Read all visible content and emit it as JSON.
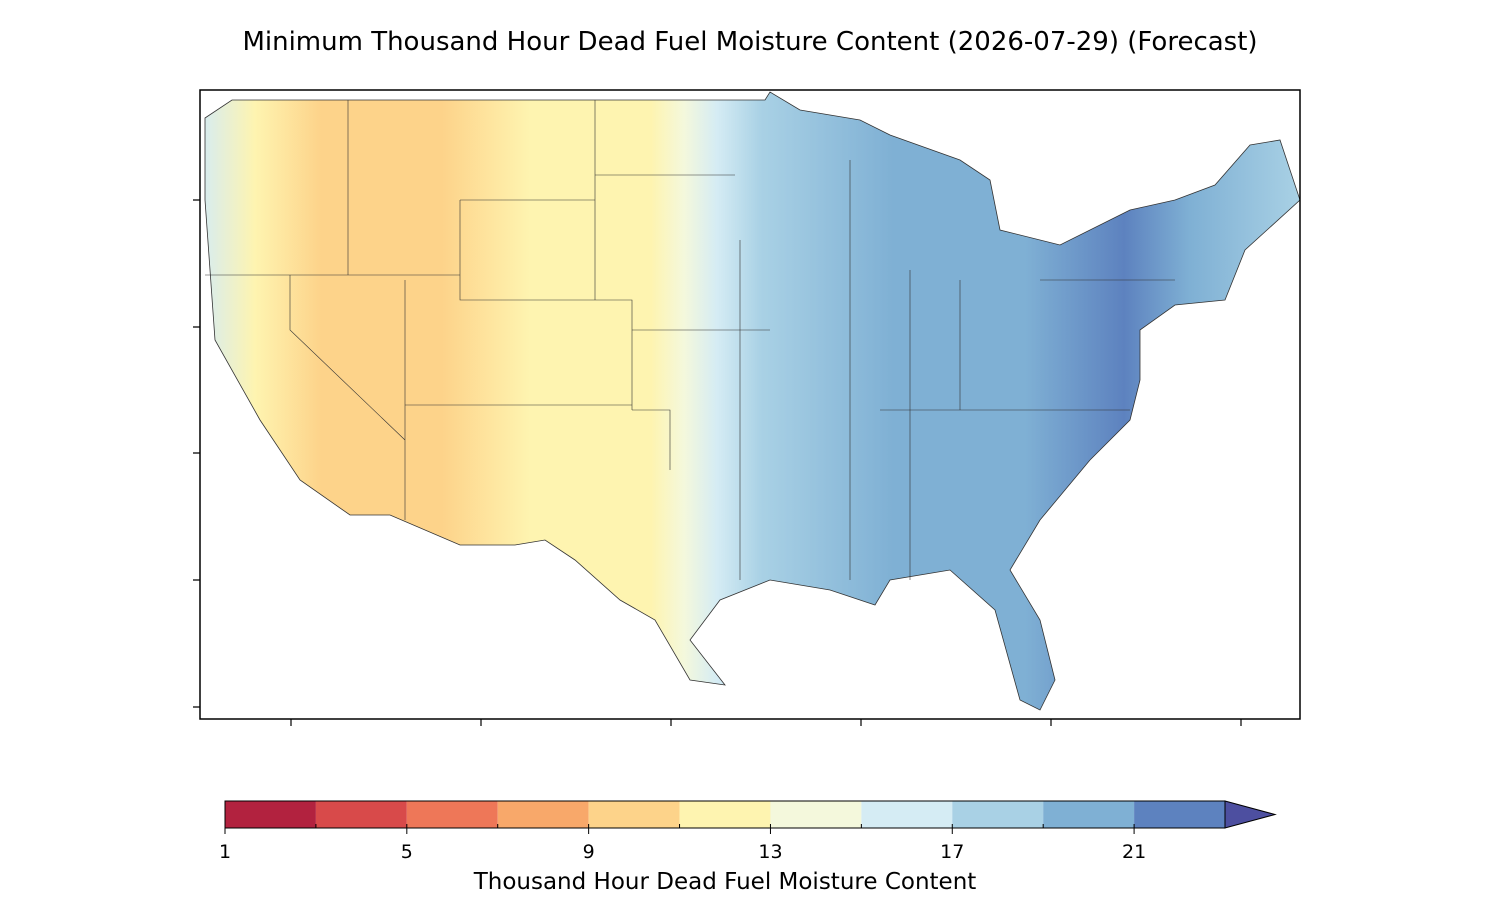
{
  "title": "Minimum Thousand Hour Dead Fuel Moisture Content (2026-07-29) (Forecast)",
  "colorbar": {
    "bins": [
      1,
      3,
      5,
      7,
      9,
      11,
      13,
      15,
      17,
      19,
      21,
      23
    ],
    "colors": [
      "#b2223f",
      "#d84a4a",
      "#ee7758",
      "#f8a86a",
      "#fdd38a",
      "#fef4b0",
      "#f4f8dc",
      "#d5ecf4",
      "#a9d1e5",
      "#7fb0d4",
      "#5d82bf"
    ],
    "extend": "max",
    "over_color": "#4d4fa0",
    "ticks": [
      1,
      5,
      9,
      13,
      17,
      21
    ],
    "label": "Thousand Hour Dead Fuel Moisture Content"
  }
}
